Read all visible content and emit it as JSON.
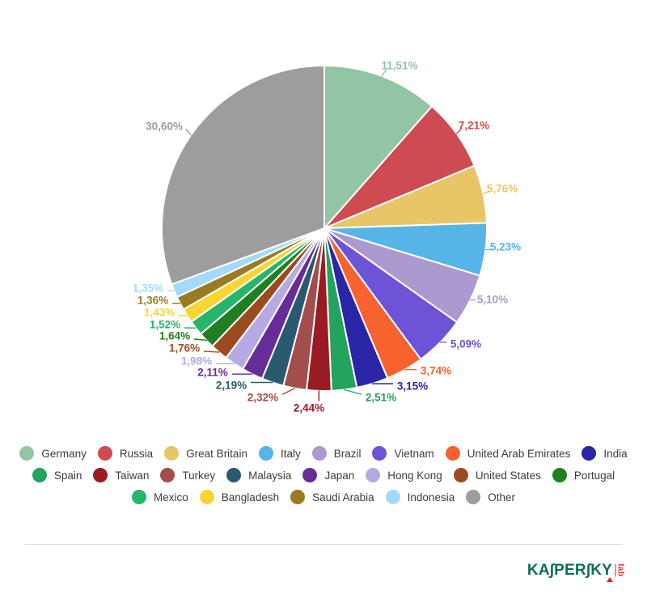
{
  "chart_data": {
    "type": "pie",
    "title": "",
    "start_angle": "top",
    "direction": "clockwise",
    "value_unit": "%",
    "value_format": "comma_decimal_percent",
    "grid": false,
    "legend_position": "bottom",
    "slices": [
      {
        "label": "Germany",
        "value": 11.51,
        "display": "11,51%",
        "color": "#92C5A5"
      },
      {
        "label": "Russia",
        "value": 7.21,
        "display": "7,21%",
        "color": "#CE4B51"
      },
      {
        "label": "Great Britain",
        "value": 5.76,
        "display": "5,76%",
        "color": "#E8C567"
      },
      {
        "label": "Italy",
        "value": 5.23,
        "display": "5,23%",
        "color": "#56B4E7"
      },
      {
        "label": "Brazil",
        "value": 5.1,
        "display": "5,10%",
        "color": "#AB99CF"
      },
      {
        "label": "Vietnam",
        "value": 5.09,
        "display": "5,09%",
        "color": "#6E53D6"
      },
      {
        "label": "United Arab Emirates",
        "value": 3.74,
        "display": "3,74%",
        "color": "#F7622F"
      },
      {
        "label": "India",
        "value": 3.15,
        "display": "3,15%",
        "color": "#2B25A8"
      },
      {
        "label": "Spain",
        "value": 2.51,
        "display": "2,51%",
        "color": "#23A35D"
      },
      {
        "label": "Taiwan",
        "value": 2.44,
        "display": "2,44%",
        "color": "#9A1B21"
      },
      {
        "label": "Turkey",
        "value": 2.32,
        "display": "2,32%",
        "color": "#A34D4D"
      },
      {
        "label": "Malaysia",
        "value": 2.19,
        "display": "2,19%",
        "color": "#2B5A70"
      },
      {
        "label": "Japan",
        "value": 2.11,
        "display": "2,11%",
        "color": "#662D99"
      },
      {
        "label": "Hong Kong",
        "value": 1.98,
        "display": "1,98%",
        "color": "#B7AAE4"
      },
      {
        "label": "United States",
        "value": 1.76,
        "display": "1,76%",
        "color": "#9C4B21"
      },
      {
        "label": "Portugal",
        "value": 1.64,
        "display": "1,64%",
        "color": "#217E21"
      },
      {
        "label": "Mexico",
        "value": 1.52,
        "display": "1,52%",
        "color": "#27B46B"
      },
      {
        "label": "Bangladesh",
        "value": 1.43,
        "display": "1,43%",
        "color": "#F7D634"
      },
      {
        "label": "Saudi Arabia",
        "value": 1.36,
        "display": "1,36%",
        "color": "#9A7B22"
      },
      {
        "label": "Indonesia",
        "value": 1.35,
        "display": "1,35%",
        "color": "#A3DAF9"
      },
      {
        "label": "Other",
        "value": 30.6,
        "display": "30,60%",
        "color": "#9D9D9D"
      }
    ],
    "legend_rows": [
      [
        0,
        1,
        2,
        3,
        4,
        5,
        6,
        7
      ],
      [
        8,
        9,
        10,
        11,
        12,
        13,
        14,
        15
      ],
      [
        16,
        17,
        18,
        19,
        20
      ]
    ]
  },
  "footer": {
    "brand": "KASPERSKY",
    "suffix": "lab",
    "brand_color": "#0A6E5C",
    "accent_color": "#E3222C"
  }
}
